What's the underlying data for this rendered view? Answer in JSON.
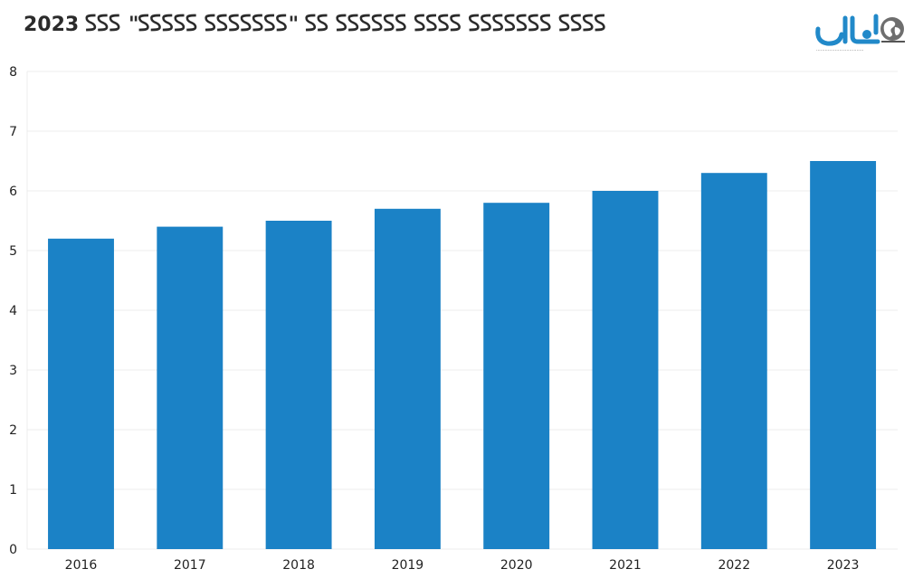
{
  "header": {
    "title": "2023 𐊖𐊖𐊖 \"𐊖𐊖𐊖𐊖𐊖 𐊖𐊖𐊖𐊖𐊖𐊖𐊖\" 𐊖𐊖 𐊖𐊖𐊖𐊖𐊖𐊖 𐊖𐊖𐊖𐊖 𐊖𐊖𐊖𐊖𐊖𐊖𐊖 𐊖𐊖𐊖𐊖",
    "logo_text": "المال",
    "logo_icon": "globe-icon"
  },
  "colors": {
    "bar": "#1b82c6",
    "grid": "#ececec",
    "title": "#2b2b2b",
    "axis_text": "#222222",
    "logo_blue": "#2189c9",
    "logo_grey": "#555555"
  },
  "chart_data": {
    "type": "bar",
    "categories": [
      "2016",
      "2017",
      "2018",
      "2019",
      "2020",
      "2021",
      "2022",
      "2023"
    ],
    "values": [
      5.2,
      5.4,
      5.5,
      5.7,
      5.8,
      6.0,
      6.3,
      6.5
    ],
    "title": "",
    "xlabel": "",
    "ylabel": "",
    "ylim": [
      0,
      8
    ],
    "yticks": [
      "0",
      "1",
      "2",
      "3",
      "4",
      "5",
      "6",
      "7",
      "8"
    ],
    "grid": true,
    "legend": "none"
  }
}
